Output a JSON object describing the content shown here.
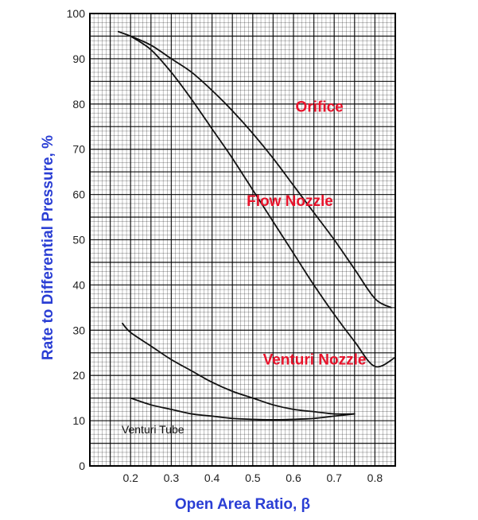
{
  "chart_data": {
    "type": "line",
    "xlabel": "Open Area Ratio, β",
    "ylabel": "Rate to Differential Pressure, %",
    "xlim": [
      0.1,
      0.85
    ],
    "ylim": [
      0,
      100
    ],
    "x_ticks": [
      "0.2",
      "0.3",
      "0.4",
      "0.5",
      "0.6",
      "0.7",
      "0.8"
    ],
    "y_ticks": [
      "0",
      "10",
      "20",
      "30",
      "40",
      "50",
      "60",
      "70",
      "80",
      "90",
      "100"
    ],
    "grid": true,
    "series": [
      {
        "name": "Orifice",
        "color": "#111111",
        "label_color": "#e8132b",
        "x": [
          0.17,
          0.2,
          0.25,
          0.3,
          0.35,
          0.4,
          0.45,
          0.5,
          0.55,
          0.6,
          0.65,
          0.7,
          0.75,
          0.8,
          0.84
        ],
        "y": [
          96,
          95,
          93,
          90,
          87,
          83,
          78.5,
          73.5,
          68,
          62,
          56,
          50,
          43.5,
          37,
          35
        ]
      },
      {
        "name": "Flow Nozzle",
        "color": "#111111",
        "label_color": "#e8132b",
        "x": [
          0.2,
          0.25,
          0.3,
          0.35,
          0.4,
          0.45,
          0.5,
          0.55,
          0.6,
          0.65,
          0.7,
          0.75,
          0.8,
          0.85
        ],
        "y": [
          95,
          92,
          87,
          81,
          74.5,
          68,
          61,
          54,
          47,
          40,
          33.5,
          27.5,
          22,
          24
        ]
      },
      {
        "name": "Venturi Nozzle",
        "color": "#111111",
        "label_color": "#e8132b",
        "x": [
          0.18,
          0.2,
          0.25,
          0.3,
          0.35,
          0.4,
          0.45,
          0.5,
          0.55,
          0.6,
          0.65,
          0.7,
          0.75
        ],
        "y": [
          31.5,
          29.5,
          26.5,
          23.5,
          21,
          18.5,
          16.5,
          15,
          13.5,
          12.5,
          12,
          11.5,
          11.5
        ]
      },
      {
        "name": "Venturi Tube",
        "color": "#111111",
        "label_color": "#111111",
        "x": [
          0.2,
          0.25,
          0.3,
          0.35,
          0.4,
          0.45,
          0.5,
          0.55,
          0.6,
          0.65,
          0.7,
          0.75
        ],
        "y": [
          15,
          13.5,
          12.5,
          11.5,
          11,
          10.5,
          10.3,
          10.2,
          10.3,
          10.5,
          11,
          11.5
        ]
      }
    ]
  },
  "colors": {
    "axis_title": "#2a3ed4",
    "grid": "#000000",
    "background": "#ffffff"
  }
}
